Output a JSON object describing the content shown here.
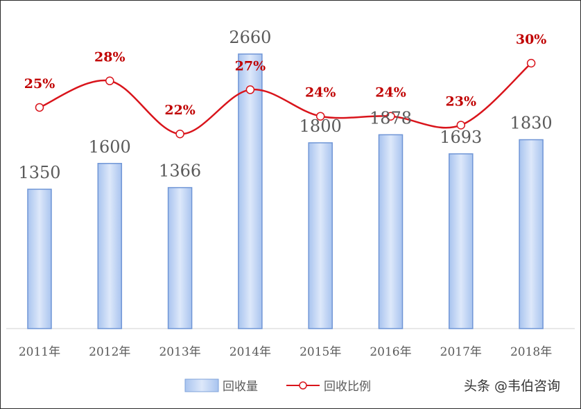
{
  "chart_data": {
    "type": "bar",
    "categories": [
      "2011年",
      "2012年",
      "2013年",
      "2014年",
      "2015年",
      "2016年",
      "2017年",
      "2018年"
    ],
    "series": [
      {
        "name": "回收量",
        "type": "bar",
        "values": [
          1350,
          1600,
          1366,
          2660,
          1800,
          1878,
          1693,
          1830
        ],
        "labels": [
          "1350",
          "1600",
          "1366",
          "2660",
          "1800",
          "1878",
          "1693",
          "1830"
        ],
        "color": "#8fb3e8"
      },
      {
        "name": "回收比例",
        "type": "line",
        "values": [
          25,
          28,
          22,
          27,
          24,
          24,
          23,
          30
        ],
        "labels": [
          "25%",
          "28%",
          "22%",
          "27%",
          "24%",
          "24%",
          "23%",
          "30%"
        ],
        "color": "#d9141b"
      }
    ],
    "ylim_left": [
      0,
      2700
    ],
    "ylim_right": [
      0,
      31.5
    ],
    "grid": false,
    "legend": "bottom-center"
  },
  "watermark": "头条 @韦伯咨询"
}
